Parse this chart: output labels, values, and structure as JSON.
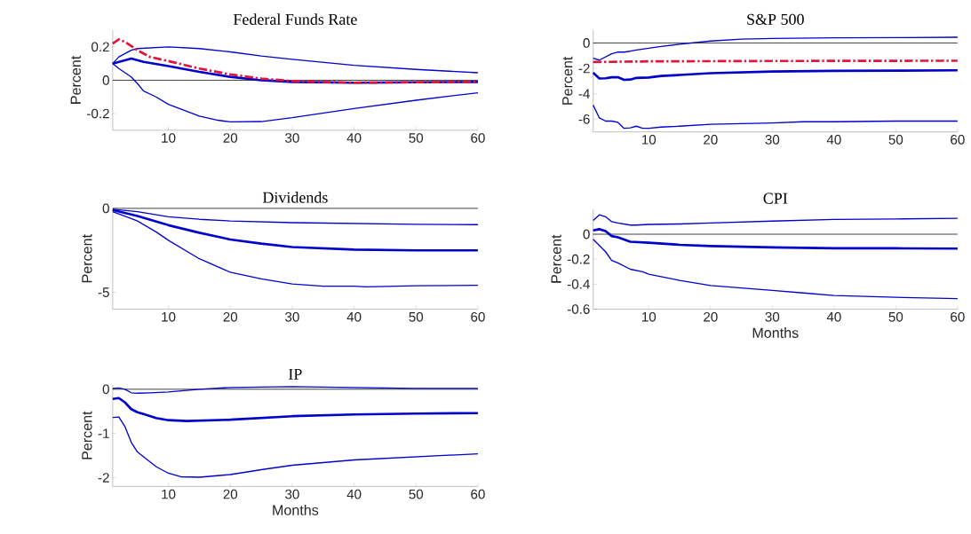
{
  "chart_data": [
    {
      "type": "line",
      "title": "Federal Funds Rate",
      "ylabel": "Percent",
      "xlim": [
        1,
        60
      ],
      "ylim": [
        -0.3,
        0.3
      ],
      "xticks": [
        10,
        20,
        30,
        40,
        50,
        60
      ],
      "yticks": [
        -0.2,
        0,
        0.2
      ],
      "ref_lines": [
        {
          "axis": "y",
          "value": 0,
          "color": "#000000"
        }
      ],
      "series": [
        {
          "color": "#0000cc",
          "x": [
            1,
            4,
            6,
            10,
            15,
            20,
            25,
            30,
            40,
            50,
            60
          ],
          "values": [
            0.1,
            0.13,
            0.11,
            0.085,
            0.05,
            0.02,
            0.0,
            -0.01,
            -0.015,
            -0.012,
            -0.01
          ]
        },
        {
          "color": "#0000cc",
          "x": [
            1,
            2,
            4,
            5,
            10,
            15,
            20,
            25,
            30,
            40,
            50,
            60
          ],
          "values": [
            0.1,
            0.14,
            0.18,
            0.19,
            0.2,
            0.19,
            0.17,
            0.145,
            0.125,
            0.09,
            0.065,
            0.045
          ]
        },
        {
          "color": "#0000cc",
          "x": [
            1,
            2,
            4,
            5,
            6,
            8,
            10,
            15,
            18,
            20,
            25,
            30,
            40,
            50,
            60
          ],
          "values": [
            0.1,
            0.07,
            0.02,
            -0.02,
            -0.065,
            -0.1,
            -0.145,
            -0.215,
            -0.24,
            -0.25,
            -0.248,
            -0.225,
            -0.17,
            -0.12,
            -0.075
          ]
        },
        {
          "color": "#e0143c",
          "line_style": "dashed",
          "x": [
            1,
            2,
            3,
            5,
            7,
            10,
            15,
            20,
            25,
            30,
            40,
            50,
            60
          ],
          "values": [
            0.22,
            0.245,
            0.23,
            0.18,
            0.14,
            0.115,
            0.07,
            0.035,
            0.01,
            -0.005,
            -0.015,
            -0.012,
            -0.01
          ]
        }
      ]
    },
    {
      "type": "line",
      "title": "S&P 500",
      "ylabel": "Percent",
      "xlim": [
        1,
        60
      ],
      "ylim": [
        -7,
        1
      ],
      "xticks": [
        10,
        20,
        30,
        40,
        50,
        60
      ],
      "yticks": [
        -6,
        -4,
        -2,
        0
      ],
      "ref_lines": [
        {
          "axis": "y",
          "value": 0,
          "color": "#000000"
        }
      ],
      "series": [
        {
          "color": "#0000cc",
          "x": [
            1,
            2,
            3,
            4,
            5,
            6,
            7,
            8,
            10,
            12,
            15,
            20,
            30,
            40,
            50,
            60
          ],
          "values": [
            -2.35,
            -2.8,
            -2.78,
            -2.7,
            -2.7,
            -2.9,
            -2.88,
            -2.75,
            -2.72,
            -2.6,
            -2.52,
            -2.38,
            -2.25,
            -2.2,
            -2.18,
            -2.15
          ]
        },
        {
          "color": "#0000cc",
          "x": [
            1,
            2,
            4,
            5,
            6,
            7,
            8,
            10,
            12,
            15,
            20,
            25,
            30,
            40,
            50,
            60
          ],
          "values": [
            -1.2,
            -1.35,
            -0.85,
            -0.72,
            -0.72,
            -0.65,
            -0.55,
            -0.42,
            -0.28,
            -0.1,
            0.15,
            0.3,
            0.35,
            0.4,
            0.42,
            0.45
          ]
        },
        {
          "color": "#0000cc",
          "x": [
            1,
            2,
            3,
            4,
            5,
            6,
            7,
            8,
            9,
            10,
            12,
            15,
            20,
            30,
            35,
            40,
            50,
            60
          ],
          "values": [
            -4.9,
            -5.9,
            -6.15,
            -6.15,
            -6.25,
            -6.72,
            -6.68,
            -6.55,
            -6.72,
            -6.72,
            -6.62,
            -6.55,
            -6.4,
            -6.3,
            -6.2,
            -6.2,
            -6.15,
            -6.15
          ]
        },
        {
          "color": "#e0143c",
          "line_style": "dashed",
          "x": [
            1,
            10,
            30,
            60
          ],
          "values": [
            -1.5,
            -1.45,
            -1.42,
            -1.4
          ]
        }
      ]
    },
    {
      "type": "line",
      "title": "Dividends",
      "ylabel": "Percent",
      "xlim": [
        1,
        60
      ],
      "ylim": [
        -6,
        0
      ],
      "xticks": [
        10,
        20,
        30,
        40,
        50,
        60
      ],
      "yticks": [
        -5,
        0
      ],
      "ref_lines": [
        {
          "axis": "y",
          "value": 0,
          "color": "#000000"
        }
      ],
      "series": [
        {
          "color": "#0000cc",
          "x": [
            1,
            5,
            10,
            15,
            20,
            25,
            30,
            40,
            50,
            60
          ],
          "values": [
            -0.1,
            -0.45,
            -1.0,
            -1.45,
            -1.85,
            -2.1,
            -2.3,
            -2.45,
            -2.5,
            -2.5
          ]
        },
        {
          "color": "#0000cc",
          "x": [
            1,
            5,
            10,
            15,
            20,
            30,
            40,
            50,
            60
          ],
          "values": [
            -0.05,
            -0.2,
            -0.5,
            -0.65,
            -0.75,
            -0.85,
            -0.9,
            -0.95,
            -0.97
          ]
        },
        {
          "color": "#0000cc",
          "x": [
            1,
            4,
            5,
            8,
            10,
            15,
            20,
            25,
            30,
            35,
            40,
            42,
            50,
            60
          ],
          "values": [
            -0.2,
            -0.6,
            -0.75,
            -1.4,
            -1.9,
            -3.0,
            -3.8,
            -4.2,
            -4.5,
            -4.63,
            -4.63,
            -4.67,
            -4.6,
            -4.58
          ]
        }
      ]
    },
    {
      "type": "line",
      "title": "CPI",
      "xlabel": "Months",
      "ylabel": "Percent",
      "xlim": [
        1,
        60
      ],
      "ylim": [
        -0.6,
        0.2
      ],
      "xticks": [
        10,
        20,
        30,
        40,
        50,
        60
      ],
      "yticks": [
        -0.6,
        -0.4,
        -0.2,
        0
      ],
      "ref_lines": [
        {
          "axis": "y",
          "value": 0,
          "color": "#000000"
        }
      ],
      "series": [
        {
          "color": "#0000cc",
          "x": [
            1,
            2,
            3,
            4,
            5,
            7,
            10,
            15,
            20,
            30,
            40,
            50,
            60
          ],
          "values": [
            0.03,
            0.04,
            0.025,
            -0.015,
            -0.025,
            -0.06,
            -0.068,
            -0.085,
            -0.095,
            -0.105,
            -0.112,
            -0.113,
            -0.115
          ]
        },
        {
          "color": "#0000cc",
          "x": [
            1,
            2,
            3,
            4,
            5,
            7,
            8,
            10,
            15,
            20,
            30,
            40,
            50,
            60
          ],
          "values": [
            0.11,
            0.155,
            0.14,
            0.1,
            0.09,
            0.073,
            0.073,
            0.078,
            0.082,
            0.09,
            0.105,
            0.118,
            0.122,
            0.127
          ]
        },
        {
          "color": "#0000cc",
          "x": [
            1,
            2,
            3,
            4,
            5,
            7,
            9,
            10,
            15,
            20,
            25,
            30,
            35,
            40,
            50,
            60
          ],
          "values": [
            -0.04,
            -0.09,
            -0.14,
            -0.21,
            -0.23,
            -0.28,
            -0.3,
            -0.32,
            -0.37,
            -0.41,
            -0.43,
            -0.45,
            -0.47,
            -0.49,
            -0.505,
            -0.515
          ]
        }
      ]
    },
    {
      "type": "line",
      "title": "IP",
      "xlabel": "Months",
      "ylabel": "Percent",
      "xlim": [
        1,
        60
      ],
      "ylim": [
        -2.2,
        0.1
      ],
      "xticks": [
        10,
        20,
        30,
        40,
        50,
        60
      ],
      "yticks": [
        -2,
        -1,
        0
      ],
      "ref_lines": [
        {
          "axis": "y",
          "value": 0,
          "color": "#000000"
        }
      ],
      "series": [
        {
          "color": "#0000cc",
          "x": [
            1,
            2,
            3,
            4,
            5,
            6,
            8,
            10,
            13,
            20,
            30,
            40,
            50,
            60
          ],
          "values": [
            -0.22,
            -0.2,
            -0.3,
            -0.45,
            -0.52,
            -0.56,
            -0.65,
            -0.7,
            -0.72,
            -0.69,
            -0.61,
            -0.57,
            -0.55,
            -0.54
          ]
        },
        {
          "color": "#0000cc",
          "x": [
            1,
            2,
            3,
            4,
            5,
            7,
            10,
            15,
            20,
            30,
            40,
            50,
            60
          ],
          "values": [
            0.02,
            0.03,
            0.0,
            -0.08,
            -0.09,
            -0.08,
            -0.06,
            0.0,
            0.04,
            0.06,
            0.04,
            0.02,
            0.02
          ]
        },
        {
          "color": "#0000cc",
          "x": [
            1,
            2,
            3,
            4,
            5,
            6,
            8,
            10,
            12,
            15,
            20,
            25,
            30,
            40,
            50,
            60
          ],
          "values": [
            -0.64,
            -0.63,
            -0.85,
            -1.2,
            -1.42,
            -1.53,
            -1.75,
            -1.9,
            -1.98,
            -1.99,
            -1.93,
            -1.82,
            -1.72,
            -1.6,
            -1.53,
            -1.46
          ]
        }
      ]
    }
  ]
}
